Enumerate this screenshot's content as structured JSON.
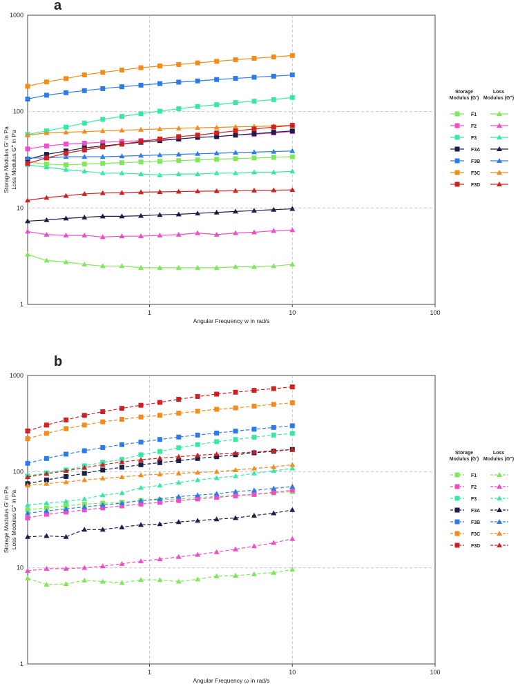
{
  "chart_data": [
    {
      "type": "line",
      "panel_label": "a",
      "xlabel": "Angular Frequency  w  in rad/s",
      "ylabel_line1": "Storage Modulus G' in Pa",
      "ylabel_line2": "Loss Modulus G'' in Pa",
      "xscale": "log",
      "yscale": "log",
      "xlim": [
        0.14,
        100
      ],
      "ylim": [
        1,
        1000
      ],
      "xticks": [
        "1",
        "10",
        "100"
      ],
      "yticks": [
        "1",
        "10",
        "100",
        "1000"
      ],
      "dashed": false,
      "grid": true,
      "x": [
        0.14,
        0.19,
        0.26,
        0.35,
        0.47,
        0.64,
        0.87,
        1.18,
        1.6,
        2.17,
        2.95,
        4.0,
        5.4,
        7.4,
        10.0
      ],
      "legend": {
        "storage_header": "Storage Modulus (G')",
        "loss_header": "Loss Modulus (G\")",
        "position": "right"
      },
      "series": [
        {
          "name": "F1",
          "color": "#7ee85a",
          "storage": [
            30,
            28.5,
            28,
            28.5,
            29,
            29.5,
            30,
            30.5,
            31,
            31.5,
            32,
            32.5,
            33,
            33.5,
            34
          ],
          "loss": [
            3.3,
            2.85,
            2.75,
            2.6,
            2.5,
            2.5,
            2.4,
            2.4,
            2.4,
            2.4,
            2.4,
            2.45,
            2.45,
            2.5,
            2.6
          ]
        },
        {
          "name": "F2",
          "color": "#ee4fc6",
          "storage": [
            41,
            44,
            46,
            47,
            48,
            49,
            50,
            51,
            52,
            54,
            55,
            57,
            58,
            60,
            62
          ],
          "loss": [
            5.7,
            5.3,
            5.2,
            5.2,
            5.0,
            5.1,
            5.1,
            5.2,
            5.3,
            5.5,
            5.3,
            5.5,
            5.6,
            5.8,
            5.9
          ]
        },
        {
          "name": "F3",
          "color": "#39e8a4",
          "storage": [
            58,
            63,
            69,
            76,
            83,
            89,
            95,
            101,
            107,
            113,
            118,
            124,
            128,
            133,
            140
          ],
          "loss": [
            28,
            26.5,
            25,
            24,
            23,
            23,
            22.5,
            22,
            22.5,
            22.5,
            23,
            23,
            23.5,
            23.5,
            24
          ]
        },
        {
          "name": "F3A",
          "color": "#1a1f4a",
          "storage": [
            32,
            36,
            39,
            42,
            44,
            46,
            48,
            50,
            52,
            54,
            55,
            57,
            59,
            61,
            63
          ],
          "loss": [
            7.3,
            7.5,
            7.8,
            8.0,
            8.2,
            8.2,
            8.3,
            8.5,
            8.6,
            8.8,
            9.0,
            9.2,
            9.4,
            9.6,
            9.8
          ]
        },
        {
          "name": "F3B",
          "color": "#2e7be8",
          "storage": [
            135,
            148,
            157,
            165,
            173,
            181,
            188,
            195,
            202,
            208,
            215,
            221,
            227,
            233,
            240
          ],
          "loss": [
            33,
            33,
            34,
            34,
            34,
            34.5,
            35,
            35.5,
            36,
            36.5,
            37,
            37.5,
            38,
            38.5,
            39
          ]
        },
        {
          "name": "F3C",
          "color": "#f28c1c",
          "storage": [
            183,
            203,
            220,
            240,
            255,
            270,
            285,
            297,
            308,
            320,
            332,
            345,
            357,
            369,
            382
          ],
          "loss": [
            57,
            60,
            61,
            62,
            63,
            64,
            65,
            66,
            67,
            68,
            68.5,
            69.5,
            70,
            71,
            72
          ]
        },
        {
          "name": "F3D",
          "color": "#cc2222",
          "storage": [
            29,
            33,
            37,
            40,
            43,
            46,
            49,
            52,
            55,
            57,
            60,
            63,
            66,
            69,
            72
          ],
          "loss": [
            12,
            12.8,
            13.4,
            14,
            14.3,
            14.4,
            14.6,
            14.7,
            14.8,
            14.9,
            15,
            15.1,
            15.2,
            15.3,
            15.4
          ]
        }
      ]
    },
    {
      "type": "line",
      "panel_label": "b",
      "xlabel": "Angular Frequency  ω  in rad/s",
      "ylabel_line1": "Storage Modulus G' in Pa",
      "ylabel_line2": "Loss Modulus G'' in Pa",
      "xscale": "log",
      "yscale": "log",
      "xlim": [
        0.14,
        100
      ],
      "ylim": [
        1,
        1000
      ],
      "xticks": [
        "1",
        "10",
        "100"
      ],
      "yticks": [
        "1",
        "10",
        "100",
        "1000"
      ],
      "dashed": true,
      "grid": true,
      "x": [
        0.14,
        0.19,
        0.26,
        0.35,
        0.47,
        0.64,
        0.87,
        1.18,
        1.6,
        2.17,
        2.95,
        4.0,
        5.4,
        7.4,
        10.0
      ],
      "legend": {
        "storage_header": "Storage Modulus (G')",
        "loss_header": "Loss Modulus (G\")",
        "position": "right"
      },
      "series": [
        {
          "name": "F1",
          "color": "#7ee85a",
          "storage": [
            40,
            42,
            44,
            46,
            47,
            48,
            50,
            51,
            52,
            54,
            55,
            57,
            58,
            60,
            62
          ],
          "loss": [
            7.8,
            6.7,
            6.8,
            7.4,
            7.2,
            7.0,
            7.5,
            7.5,
            7.2,
            7.6,
            8.2,
            8.3,
            8.6,
            8.9,
            9.6
          ]
        },
        {
          "name": "F2",
          "color": "#ee4fc6",
          "storage": [
            33,
            36,
            38,
            40,
            42,
            44,
            46,
            48,
            50,
            52,
            54,
            56,
            58,
            61,
            64
          ],
          "loss": [
            9.3,
            9.8,
            9.8,
            10.0,
            10.4,
            11.0,
            11.7,
            12.3,
            13.0,
            13.7,
            14.6,
            15.6,
            16.8,
            18.2,
            20.0
          ]
        },
        {
          "name": "F3",
          "color": "#39e8a4",
          "storage": [
            90,
            97,
            104,
            115,
            125,
            134,
            150,
            162,
            177,
            191,
            205,
            216,
            228,
            240,
            250
          ],
          "loss": [
            45,
            47,
            49,
            52,
            57,
            60,
            68,
            72,
            77,
            82,
            86,
            90,
            96,
            102,
            108
          ]
        },
        {
          "name": "F3A",
          "color": "#1a1f4a",
          "storage": [
            75,
            82,
            89,
            96,
            104,
            111,
            118,
            124,
            130,
            137,
            143,
            150,
            157,
            163,
            170
          ],
          "loss": [
            21,
            21.5,
            21,
            25,
            25,
            26.5,
            28,
            28.5,
            30,
            31,
            32,
            33,
            35,
            37,
            40
          ]
        },
        {
          "name": "F3B",
          "color": "#2e7be8",
          "storage": [
            122,
            137,
            152,
            165,
            178,
            191,
            203,
            216,
            229,
            240,
            252,
            264,
            276,
            288,
            300
          ],
          "loss": [
            37,
            39,
            41,
            43,
            45,
            47,
            50,
            52,
            55,
            57,
            59,
            62,
            64,
            67,
            70
          ]
        },
        {
          "name": "F3C",
          "color": "#f28c1c",
          "storage": [
            220,
            250,
            280,
            305,
            330,
            350,
            370,
            385,
            405,
            425,
            445,
            460,
            480,
            500,
            520
          ],
          "loss": [
            72,
            75,
            78,
            82,
            85,
            88,
            92,
            94,
            96,
            98,
            100,
            104,
            108,
            112,
            118
          ]
        },
        {
          "name": "F3D",
          "color": "#cc2222",
          "storage": [
            265,
            305,
            345,
            385,
            420,
            455,
            490,
            525,
            565,
            605,
            640,
            670,
            700,
            730,
            760
          ],
          "loss": [
            88,
            95,
            102,
            110,
            118,
            126,
            133,
            138,
            143,
            148,
            152,
            156,
            160,
            165,
            170
          ]
        }
      ]
    }
  ]
}
